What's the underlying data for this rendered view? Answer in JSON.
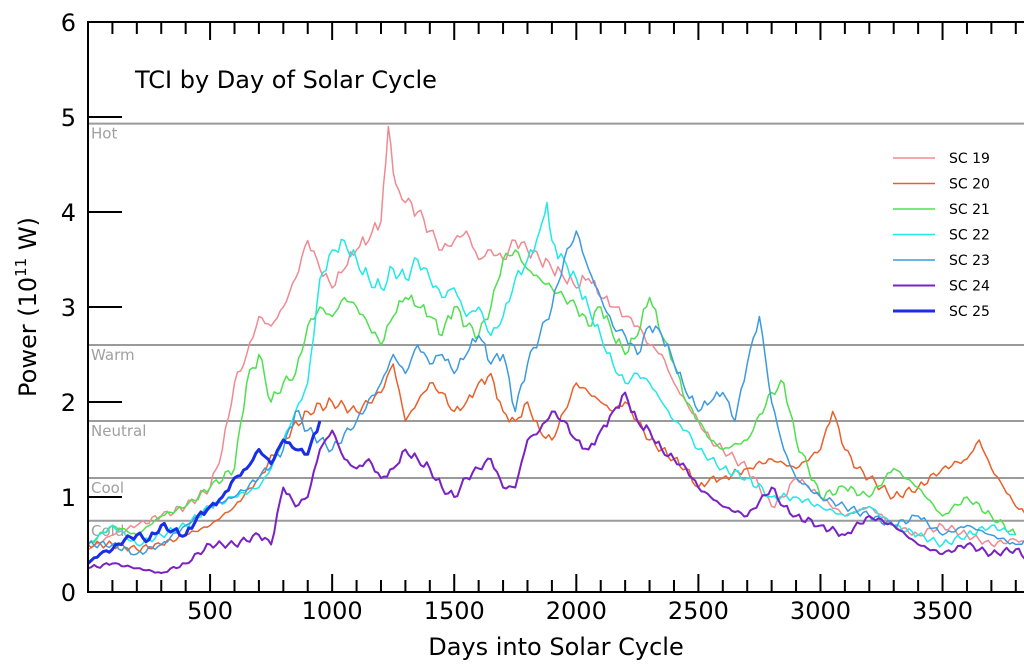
{
  "chart_data": {
    "type": "line",
    "title": "TCI by Day of Solar Cycle",
    "xlabel": "Days into Solar Cycle",
    "ylabel_main": "Power (10",
    "ylabel_sup": "11",
    "ylabel_end": " W)",
    "xlim": [
      0,
      3850
    ],
    "ylim": [
      0,
      6
    ],
    "xticks": [
      500,
      1000,
      1500,
      2000,
      2500,
      3000,
      3500
    ],
    "yticks": [
      0,
      1,
      2,
      3,
      4,
      5,
      6
    ],
    "grid": false,
    "legend_position": "top-right",
    "reference_lines": [
      {
        "label": "Hot",
        "value": 4.93
      },
      {
        "label": "Warm",
        "value": 2.6
      },
      {
        "label": "Neutral",
        "value": 1.8
      },
      {
        "label": "Cool",
        "value": 1.2
      },
      {
        "label": "Cold",
        "value": 0.75
      }
    ],
    "series": [
      {
        "name": "SC 19",
        "color": "#f08a92",
        "width": 1.5,
        "x": [
          0,
          100,
          200,
          300,
          400,
          500,
          550,
          600,
          650,
          700,
          750,
          800,
          850,
          900,
          950,
          1000,
          1050,
          1100,
          1150,
          1200,
          1230,
          1260,
          1300,
          1350,
          1400,
          1450,
          1500,
          1550,
          1600,
          1650,
          1700,
          1750,
          1800,
          1850,
          1900,
          1950,
          2000,
          2050,
          2100,
          2150,
          2200,
          2250,
          2300,
          2350,
          2400,
          2450,
          2500,
          2550,
          2600,
          2650,
          2700,
          2750,
          2800,
          2850,
          2900,
          2950,
          3000,
          3100,
          3200,
          3300,
          3400,
          3500,
          3600,
          3700,
          3800,
          3850
        ],
        "y": [
          0.45,
          0.6,
          0.7,
          0.8,
          0.9,
          1.1,
          1.5,
          2.2,
          2.5,
          2.9,
          2.8,
          3.0,
          3.3,
          3.7,
          3.4,
          3.2,
          3.4,
          3.6,
          3.7,
          3.9,
          4.9,
          4.3,
          4.1,
          4.0,
          3.8,
          3.6,
          3.7,
          3.8,
          3.5,
          3.6,
          3.5,
          3.7,
          3.6,
          3.5,
          3.4,
          3.3,
          3.2,
          3.3,
          3.1,
          3.0,
          2.9,
          2.8,
          2.6,
          2.5,
          2.2,
          2.0,
          1.8,
          1.6,
          1.5,
          1.4,
          1.3,
          1.1,
          0.9,
          1.0,
          1.2,
          1.1,
          1.0,
          0.8,
          0.9,
          0.7,
          0.6,
          0.7,
          0.6,
          0.5,
          0.55,
          0.5
        ]
      },
      {
        "name": "SC 20",
        "color": "#e8602a",
        "width": 1.5,
        "x": [
          0,
          100,
          200,
          300,
          400,
          500,
          600,
          700,
          800,
          900,
          1000,
          1100,
          1200,
          1250,
          1300,
          1350,
          1400,
          1450,
          1500,
          1550,
          1600,
          1650,
          1700,
          1750,
          1800,
          1850,
          1900,
          1950,
          2000,
          2050,
          2100,
          2150,
          2200,
          2250,
          2300,
          2350,
          2400,
          2450,
          2500,
          2550,
          2600,
          2700,
          2800,
          2900,
          3000,
          3050,
          3100,
          3150,
          3200,
          3300,
          3400,
          3500,
          3600,
          3650,
          3700,
          3750,
          3800,
          3850
        ],
        "y": [
          0.5,
          0.5,
          0.45,
          0.5,
          0.6,
          0.7,
          0.9,
          1.2,
          1.6,
          1.9,
          2.0,
          1.9,
          2.1,
          2.4,
          1.8,
          2.0,
          2.2,
          2.1,
          1.9,
          2.0,
          2.2,
          2.3,
          1.9,
          1.8,
          2.0,
          1.7,
          1.6,
          1.9,
          2.2,
          2.1,
          2.0,
          1.9,
          2.0,
          1.8,
          1.6,
          1.5,
          1.4,
          1.3,
          1.1,
          1.2,
          1.2,
          1.3,
          1.4,
          1.3,
          1.5,
          1.9,
          1.5,
          1.3,
          1.2,
          1.0,
          1.1,
          1.3,
          1.4,
          1.6,
          1.3,
          1.1,
          0.9,
          0.8
        ]
      },
      {
        "name": "SC 21",
        "color": "#4ee04e",
        "width": 1.5,
        "x": [
          0,
          100,
          200,
          300,
          400,
          500,
          600,
          650,
          700,
          750,
          800,
          850,
          900,
          950,
          1000,
          1050,
          1100,
          1150,
          1200,
          1250,
          1300,
          1350,
          1400,
          1450,
          1500,
          1550,
          1600,
          1650,
          1700,
          1750,
          1800,
          1850,
          1900,
          1950,
          2000,
          2050,
          2100,
          2150,
          2200,
          2250,
          2300,
          2350,
          2400,
          2450,
          2500,
          2550,
          2600,
          2700,
          2800,
          2850,
          2900,
          2950,
          3000,
          3100,
          3200,
          3300,
          3400,
          3500,
          3600,
          3700,
          3800
        ],
        "y": [
          0.5,
          0.7,
          0.6,
          0.8,
          0.9,
          1.1,
          1.3,
          2.2,
          2.5,
          2.0,
          2.2,
          2.3,
          2.8,
          3.0,
          2.9,
          3.1,
          3.0,
          2.8,
          2.6,
          2.9,
          3.1,
          3.0,
          2.9,
          2.7,
          3.0,
          2.8,
          2.7,
          3.0,
          3.5,
          3.6,
          3.4,
          3.3,
          3.2,
          3.1,
          3.0,
          2.8,
          3.0,
          2.7,
          2.5,
          2.7,
          3.1,
          2.7,
          2.4,
          2.0,
          1.8,
          1.6,
          1.5,
          1.6,
          2.1,
          2.2,
          1.6,
          1.3,
          1.0,
          1.1,
          1.0,
          1.3,
          1.1,
          0.8,
          1.0,
          0.8,
          0.6
        ]
      },
      {
        "name": "SC 22",
        "color": "#22e8e8",
        "width": 1.5,
        "x": [
          0,
          100,
          200,
          300,
          400,
          500,
          600,
          700,
          750,
          800,
          850,
          900,
          950,
          1000,
          1050,
          1100,
          1150,
          1200,
          1250,
          1300,
          1350,
          1400,
          1450,
          1500,
          1550,
          1600,
          1650,
          1700,
          1750,
          1800,
          1850,
          1880,
          1900,
          1950,
          2000,
          2050,
          2100,
          2150,
          2200,
          2250,
          2300,
          2350,
          2400,
          2450,
          2500,
          2550,
          2600,
          2700,
          2800,
          2900,
          3000,
          3100,
          3200,
          3300,
          3400,
          3500,
          3600,
          3700,
          3800
        ],
        "y": [
          0.5,
          0.7,
          0.5,
          0.6,
          0.7,
          0.9,
          1.0,
          1.1,
          1.3,
          1.6,
          1.9,
          2.2,
          3.3,
          3.6,
          3.7,
          3.5,
          3.3,
          3.2,
          3.4,
          3.3,
          3.5,
          3.3,
          3.1,
          3.2,
          2.9,
          3.0,
          2.7,
          2.9,
          3.3,
          3.5,
          3.8,
          4.1,
          3.7,
          3.5,
          3.3,
          3.0,
          2.7,
          2.4,
          2.2,
          2.3,
          2.2,
          2.0,
          1.8,
          1.7,
          1.5,
          1.4,
          1.3,
          1.2,
          1.0,
          1.0,
          0.9,
          0.8,
          0.9,
          0.7,
          0.6,
          0.5,
          0.6,
          0.7,
          0.6
        ]
      },
      {
        "name": "SC 23",
        "color": "#3b9ae0",
        "width": 1.5,
        "x": [
          0,
          100,
          200,
          300,
          400,
          500,
          600,
          700,
          800,
          850,
          900,
          950,
          1000,
          1100,
          1200,
          1250,
          1300,
          1350,
          1400,
          1450,
          1500,
          1550,
          1600,
          1650,
          1700,
          1750,
          1800,
          1850,
          1900,
          1950,
          2000,
          2050,
          2100,
          2150,
          2200,
          2250,
          2300,
          2350,
          2400,
          2450,
          2500,
          2550,
          2600,
          2650,
          2700,
          2750,
          2800,
          2850,
          2900,
          3000,
          3100,
          3200,
          3300,
          3400,
          3500,
          3600,
          3700,
          3800,
          3850
        ],
        "y": [
          0.5,
          0.5,
          0.4,
          0.5,
          0.7,
          0.9,
          1.0,
          1.2,
          1.5,
          1.9,
          1.7,
          1.6,
          1.5,
          1.8,
          2.2,
          2.5,
          2.3,
          2.6,
          2.4,
          2.5,
          2.3,
          2.5,
          2.7,
          2.4,
          2.5,
          1.9,
          2.4,
          2.7,
          3.0,
          3.5,
          3.8,
          3.4,
          3.1,
          2.8,
          2.7,
          2.5,
          2.8,
          2.7,
          2.4,
          2.1,
          1.9,
          2.0,
          2.1,
          1.8,
          2.4,
          2.9,
          2.0,
          1.5,
          1.2,
          1.0,
          0.9,
          0.8,
          0.7,
          0.8,
          0.6,
          0.7,
          0.6,
          0.5,
          0.55
        ]
      },
      {
        "name": "SC 24",
        "color": "#7a22c4",
        "width": 2,
        "x": [
          0,
          100,
          200,
          300,
          400,
          500,
          600,
          700,
          750,
          800,
          850,
          900,
          950,
          1000,
          1050,
          1100,
          1150,
          1200,
          1250,
          1300,
          1350,
          1400,
          1450,
          1500,
          1550,
          1600,
          1650,
          1700,
          1750,
          1800,
          1850,
          1900,
          1950,
          2000,
          2050,
          2100,
          2150,
          2200,
          2250,
          2300,
          2350,
          2400,
          2450,
          2500,
          2550,
          2600,
          2700,
          2800,
          2850,
          2900,
          3000,
          3100,
          3200,
          3300,
          3400,
          3500,
          3600,
          3700,
          3800,
          3850
        ],
        "y": [
          0.25,
          0.3,
          0.25,
          0.2,
          0.3,
          0.5,
          0.5,
          0.6,
          0.5,
          1.1,
          0.9,
          1.0,
          1.5,
          1.7,
          1.4,
          1.3,
          1.4,
          1.2,
          1.3,
          1.5,
          1.4,
          1.3,
          1.1,
          1.0,
          1.2,
          1.3,
          1.4,
          1.1,
          1.1,
          1.6,
          1.7,
          1.9,
          1.8,
          1.6,
          1.5,
          1.7,
          1.9,
          2.1,
          1.8,
          1.7,
          1.5,
          1.4,
          1.3,
          1.1,
          1.0,
          0.9,
          0.8,
          1.1,
          0.9,
          0.8,
          0.7,
          0.6,
          0.8,
          0.7,
          0.5,
          0.4,
          0.5,
          0.4,
          0.45,
          0.35
        ]
      },
      {
        "name": "SC 25",
        "color": "#1a2ee6",
        "width": 3,
        "x": [
          0,
          50,
          100,
          150,
          200,
          250,
          300,
          350,
          400,
          450,
          500,
          550,
          600,
          650,
          700,
          750,
          800,
          850,
          900,
          950
        ],
        "y": [
          0.3,
          0.4,
          0.45,
          0.55,
          0.6,
          0.55,
          0.7,
          0.65,
          0.6,
          0.8,
          0.9,
          1.0,
          1.2,
          1.3,
          1.5,
          1.35,
          1.6,
          1.5,
          1.45,
          1.8
        ]
      }
    ]
  }
}
